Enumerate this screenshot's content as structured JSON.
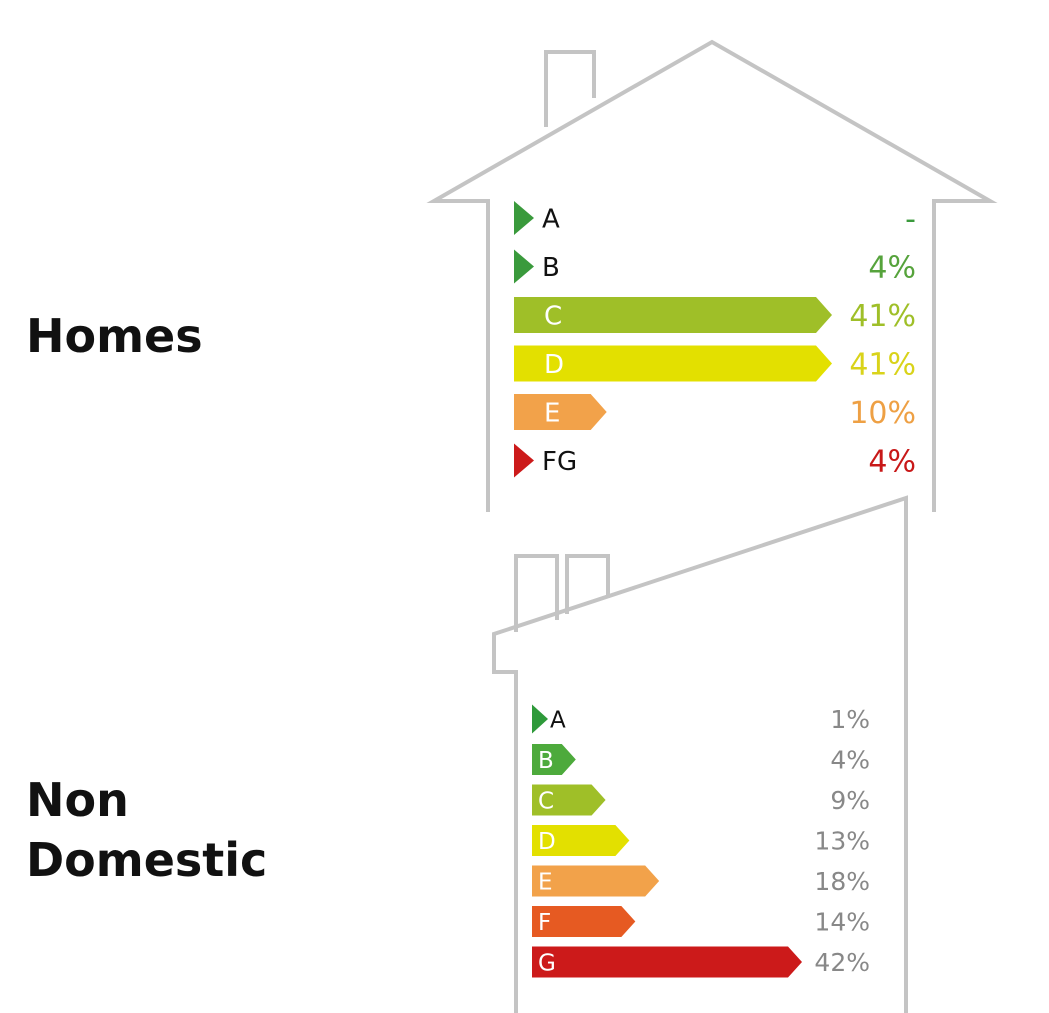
{
  "labels": {
    "homes": "Homes",
    "non_domestic_line1": "Non",
    "non_domestic_line2": "Domestic"
  },
  "chart_data": [
    {
      "type": "bar",
      "name": "Homes",
      "categories": [
        "A",
        "B",
        "C",
        "D",
        "E",
        "FG"
      ],
      "values": [
        0,
        4,
        41,
        41,
        10,
        4
      ],
      "value_labels": [
        "-",
        "4%",
        "41%",
        "41%",
        "10%",
        "4%"
      ],
      "colors": [
        "#3a9a3c",
        "#3a9a3c",
        "#9fbf28",
        "#e3e000",
        "#f2a24a",
        "#cc1a1a"
      ],
      "value_colors": [
        "#3a9a3c",
        "#56a33c",
        "#9fbf28",
        "#d9d31a",
        "#eea044",
        "#c81818"
      ],
      "category_label_position": [
        "outside",
        "outside",
        "inside",
        "inside",
        "inside",
        "outside"
      ]
    },
    {
      "type": "bar",
      "name": "Non Domestic",
      "categories": [
        "A",
        "B",
        "C",
        "D",
        "E",
        "F",
        "G"
      ],
      "values": [
        1,
        4,
        9,
        13,
        18,
        14,
        42
      ],
      "value_labels": [
        "1%",
        "4%",
        "9%",
        "13%",
        "18%",
        "14%",
        "42%"
      ],
      "colors": [
        "#2e9a3a",
        "#4daa3c",
        "#9fbf28",
        "#e3e000",
        "#f2a24a",
        "#e65a22",
        "#cc1a1a"
      ],
      "value_colors": [
        "#888888",
        "#888888",
        "#888888",
        "#888888",
        "#888888",
        "#888888",
        "#888888"
      ],
      "category_label_position": [
        "outside",
        "inside",
        "inside",
        "inside",
        "inside",
        "inside",
        "inside"
      ]
    }
  ]
}
